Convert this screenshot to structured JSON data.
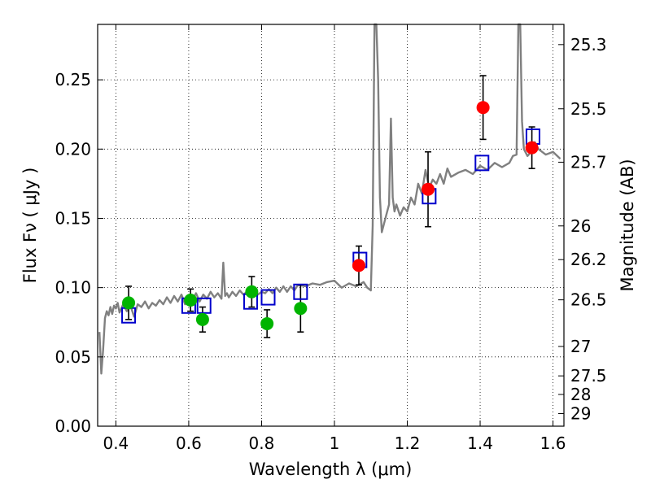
{
  "chart_data": {
    "type": "scatter",
    "xlabel": "Wavelength  λ (μm)",
    "ylabel": "Flux  Fν  ( μJy )",
    "y2label": "Magnitude (AB)",
    "xlim": [
      0.35,
      1.63
    ],
    "ylim": [
      0.0,
      0.29
    ],
    "x_ticks": [
      0.4,
      0.6,
      0.8,
      1.0,
      1.2,
      1.4,
      1.6
    ],
    "x_tick_labels": [
      "0.4",
      "0.6",
      "0.8",
      "1",
      "1.2",
      "1.4",
      "1.6"
    ],
    "y_ticks": [
      0.0,
      0.05,
      0.1,
      0.15,
      0.2,
      0.25
    ],
    "y_tick_labels": [
      "0.00",
      "0.05",
      "0.10",
      "0.15",
      "0.20",
      "0.25"
    ],
    "y2_tick_labels": [
      "25.3",
      "25.5",
      "25.7",
      "26",
      "26.2",
      "26.5",
      "27",
      "27.5",
      "28",
      "29"
    ],
    "grid": true,
    "colors": {
      "template": "#808080",
      "green_points": "#00b400",
      "red_points": "#ff0000",
      "model_boxes": "#0000cc",
      "error_bars": "#000000"
    },
    "series": [
      {
        "kind": "line",
        "color": "#808080",
        "x": [
          0.355,
          0.36,
          0.365,
          0.37,
          0.375,
          0.38,
          0.385,
          0.39,
          0.395,
          0.4,
          0.405,
          0.41,
          0.42,
          0.43,
          0.44,
          0.45,
          0.46,
          0.47,
          0.48,
          0.49,
          0.5,
          0.51,
          0.52,
          0.53,
          0.54,
          0.55,
          0.56,
          0.57,
          0.58,
          0.59,
          0.6,
          0.61,
          0.62,
          0.63,
          0.64,
          0.65,
          0.66,
          0.67,
          0.68,
          0.69,
          0.695,
          0.7,
          0.705,
          0.71,
          0.72,
          0.73,
          0.74,
          0.75,
          0.76,
          0.77,
          0.78,
          0.79,
          0.8,
          0.81,
          0.82,
          0.83,
          0.84,
          0.85,
          0.86,
          0.87,
          0.88,
          0.89,
          0.9,
          0.92,
          0.94,
          0.96,
          0.98,
          1.0,
          1.02,
          1.04,
          1.06,
          1.08,
          1.09,
          1.1,
          1.105,
          1.11,
          1.115,
          1.12,
          1.125,
          1.13,
          1.14,
          1.15,
          1.155,
          1.16,
          1.165,
          1.17,
          1.18,
          1.19,
          1.2,
          1.21,
          1.22,
          1.23,
          1.24,
          1.25,
          1.26,
          1.27,
          1.28,
          1.29,
          1.3,
          1.31,
          1.32,
          1.34,
          1.36,
          1.38,
          1.4,
          1.42,
          1.44,
          1.46,
          1.48,
          1.49,
          1.5,
          1.505,
          1.51,
          1.515,
          1.52,
          1.53,
          1.54,
          1.55,
          1.56,
          1.58,
          1.6,
          1.62
        ],
        "y": [
          0.068,
          0.038,
          0.055,
          0.078,
          0.083,
          0.08,
          0.086,
          0.081,
          0.087,
          0.085,
          0.089,
          0.082,
          0.088,
          0.083,
          0.087,
          0.079,
          0.088,
          0.086,
          0.09,
          0.085,
          0.089,
          0.087,
          0.091,
          0.088,
          0.093,
          0.089,
          0.094,
          0.09,
          0.095,
          0.088,
          0.094,
          0.091,
          0.096,
          0.09,
          0.095,
          0.092,
          0.097,
          0.093,
          0.096,
          0.092,
          0.118,
          0.094,
          0.096,
          0.093,
          0.097,
          0.094,
          0.098,
          0.095,
          0.097,
          0.094,
          0.098,
          0.095,
          0.097,
          0.096,
          0.099,
          0.096,
          0.1,
          0.097,
          0.101,
          0.097,
          0.101,
          0.098,
          0.102,
          0.101,
          0.103,
          0.102,
          0.104,
          0.105,
          0.1,
          0.103,
          0.101,
          0.104,
          0.1,
          0.098,
          0.145,
          0.29,
          0.29,
          0.25,
          0.165,
          0.14,
          0.15,
          0.16,
          0.222,
          0.165,
          0.155,
          0.16,
          0.152,
          0.158,
          0.155,
          0.165,
          0.16,
          0.175,
          0.168,
          0.185,
          0.172,
          0.178,
          0.175,
          0.182,
          0.175,
          0.186,
          0.18,
          0.183,
          0.185,
          0.182,
          0.188,
          0.185,
          0.19,
          0.187,
          0.19,
          0.195,
          0.196,
          0.29,
          0.29,
          0.22,
          0.2,
          0.195,
          0.198,
          0.205,
          0.2,
          0.196,
          0.198,
          0.193
        ]
      },
      {
        "kind": "points",
        "color": "#00b400",
        "x": [
          0.435,
          0.605,
          0.638,
          0.773,
          0.815,
          0.907
        ],
        "y": [
          0.089,
          0.091,
          0.077,
          0.097,
          0.074,
          0.085
        ],
        "err": [
          0.012,
          0.008,
          0.009,
          0.011,
          0.01,
          0.017
        ]
      },
      {
        "kind": "points",
        "color": "#ff0000",
        "x": [
          1.067,
          1.257,
          1.408,
          1.542
        ],
        "y": [
          0.116,
          0.171,
          0.23,
          0.201
        ],
        "err": [
          0.014,
          0.027,
          0.023,
          0.015
        ]
      },
      {
        "kind": "boxes",
        "color": "#0000cc",
        "x": [
          0.435,
          0.6,
          0.642,
          0.77,
          0.818,
          0.907,
          1.07,
          1.26,
          1.405,
          1.545
        ],
        "y": [
          0.08,
          0.087,
          0.087,
          0.09,
          0.093,
          0.097,
          0.12,
          0.166,
          0.19,
          0.209
        ]
      }
    ]
  }
}
